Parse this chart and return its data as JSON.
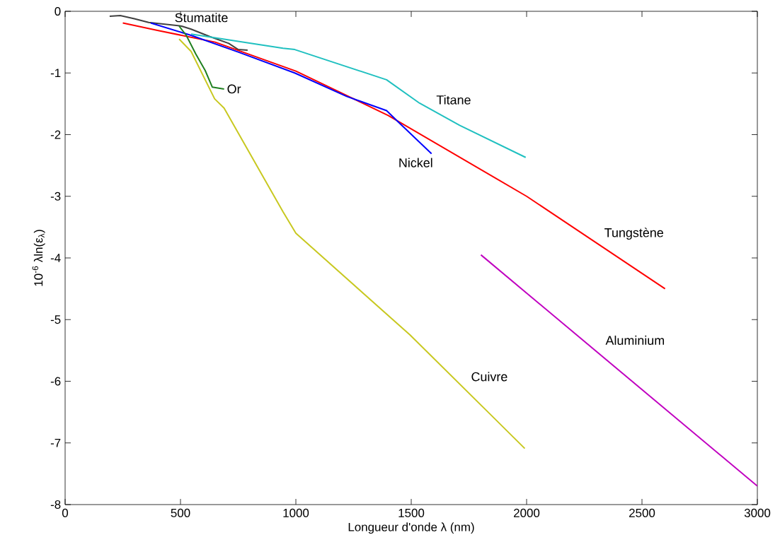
{
  "chart_data": {
    "type": "line",
    "xlabel": "Longueur d'onde λ (nm)",
    "ylabel": "10$^{-6}$ λln(ε$_{λ}$)",
    "xlim": [
      0,
      3000
    ],
    "ylim": [
      -8,
      0
    ],
    "xticks": [
      0,
      500,
      1000,
      1500,
      2000,
      2500,
      3000
    ],
    "yticks": [
      -8,
      -7,
      -6,
      -5,
      -4,
      -3,
      -2,
      -1,
      0
    ],
    "grid": false,
    "line_style": "solid",
    "marker": "none",
    "series": [
      {
        "name": "Stumatite",
        "color": "#404040",
        "x": [
          193,
          239,
          300,
          362,
          505,
          546,
          627,
          709,
          750,
          791
        ],
        "values": [
          -0.08,
          -0.07,
          -0.12,
          -0.18,
          -0.24,
          -0.29,
          -0.41,
          -0.52,
          -0.62,
          -0.63
        ]
      },
      {
        "name": "Tungstène",
        "color": "#ff0000",
        "x": [
          250,
          400,
          650,
          1000,
          1400,
          2000,
          2600
        ],
        "values": [
          -0.19,
          -0.31,
          -0.5,
          -0.97,
          -1.69,
          -3.0,
          -4.5
        ]
      },
      {
        "name": "Nickel",
        "color": "#0000ff",
        "x": [
          371,
          546,
          750,
          995,
          1220,
          1393,
          1434,
          1588
        ],
        "values": [
          -0.19,
          -0.39,
          -0.66,
          -1.0,
          -1.38,
          -1.61,
          -1.76,
          -2.31
        ]
      },
      {
        "name": "Titane",
        "color": "#20c0c0",
        "x": [
          546,
          944,
          995,
          1393,
          1536,
          1710,
          1996
        ],
        "values": [
          -0.37,
          -0.6,
          -0.62,
          -1.11,
          -1.49,
          -1.85,
          -2.37
        ]
      },
      {
        "name": "Or",
        "color": "#208020",
        "x": [
          494,
          525,
          566,
          607,
          638,
          689
        ],
        "values": [
          -0.24,
          -0.39,
          -0.69,
          -0.96,
          -1.23,
          -1.26
        ]
      },
      {
        "name": "Cuivre",
        "color": "#c8c820",
        "x": [
          494,
          546,
          648,
          689,
          944,
          1000,
          1495,
          1860,
          1992
        ],
        "values": [
          -0.45,
          -0.65,
          -1.42,
          -1.57,
          -3.25,
          -3.6,
          -5.25,
          -6.6,
          -7.09
        ]
      },
      {
        "name": "Aluminium",
        "color": "#c000c0",
        "x": [
          1802,
          3000
        ],
        "values": [
          -3.95,
          -7.7
        ]
      }
    ]
  }
}
